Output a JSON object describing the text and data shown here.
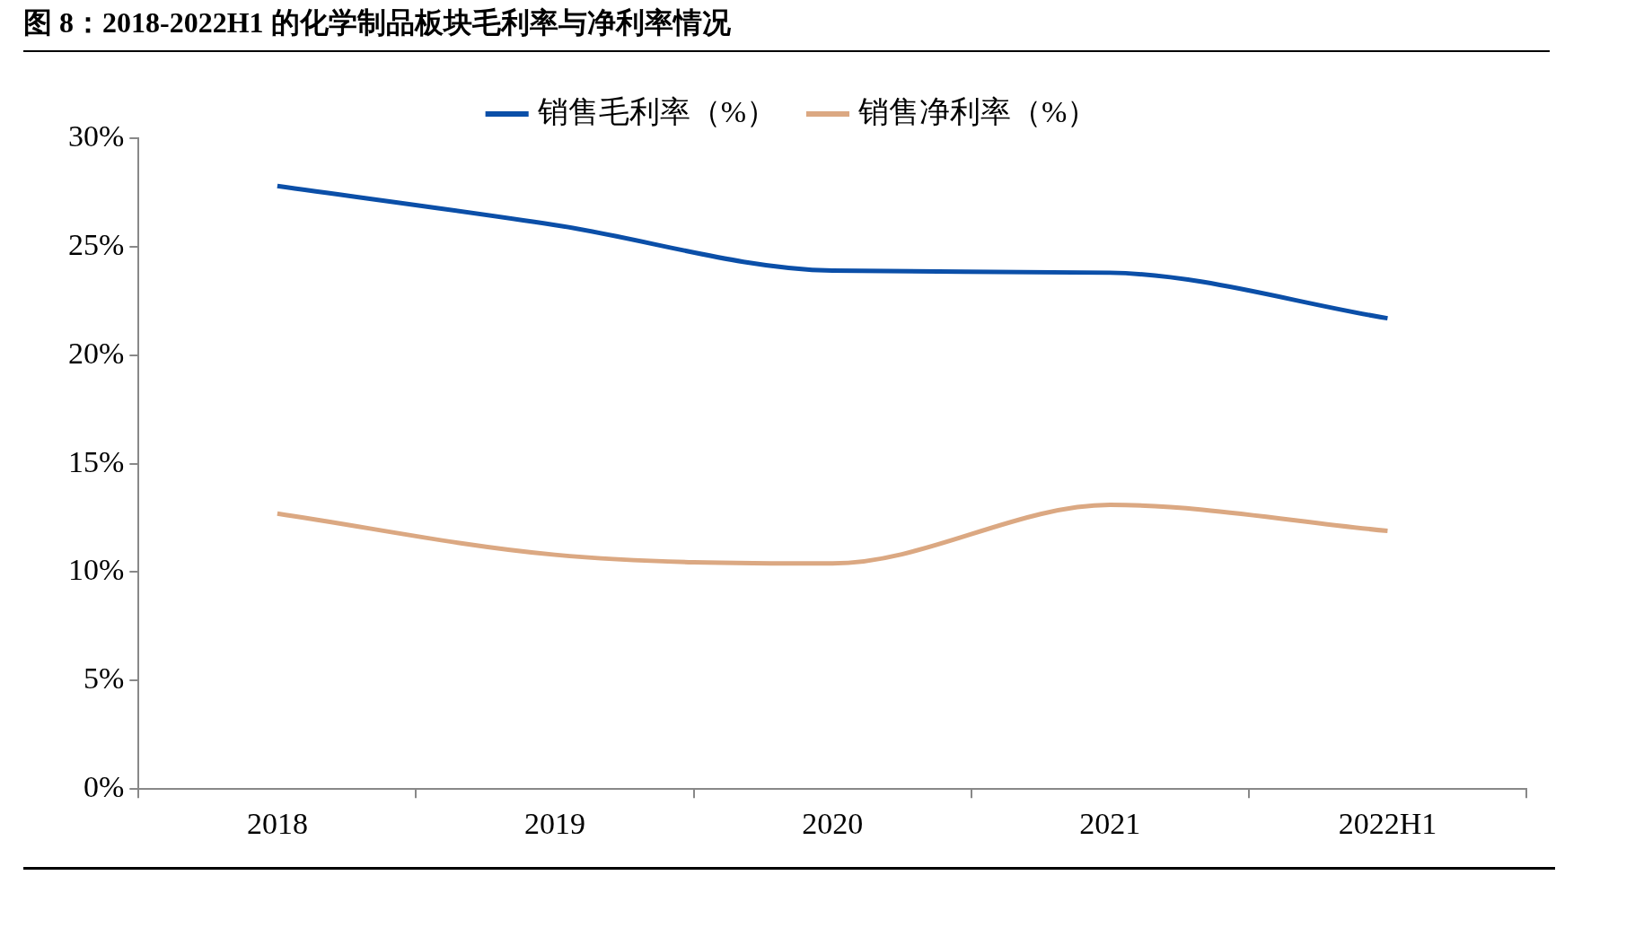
{
  "chart_data": {
    "type": "line",
    "title": "图 8：2018-2022H1 的化学制品板块毛利率与净利率情况",
    "categories": [
      "2018",
      "2019",
      "2020",
      "2021",
      "2022H1"
    ],
    "series": [
      {
        "name": "销售毛利率（%）",
        "color": "#0b4fa8",
        "values": [
          27.8,
          26.0,
          23.9,
          23.8,
          21.7
        ]
      },
      {
        "name": "销售净利率（%）",
        "color": "#dba882",
        "values": [
          12.7,
          10.8,
          10.4,
          13.1,
          11.9
        ]
      }
    ],
    "ylim": [
      0,
      30
    ],
    "yticks": [
      {
        "value": 0,
        "label": "0%"
      },
      {
        "value": 5,
        "label": "5%"
      },
      {
        "value": 10,
        "label": "10%"
      },
      {
        "value": 15,
        "label": "15%"
      },
      {
        "value": 20,
        "label": "20%"
      },
      {
        "value": 25,
        "label": "25%"
      },
      {
        "value": 30,
        "label": "30%"
      }
    ],
    "grid": false,
    "legend": "top",
    "marker": "none",
    "line_style": "solid"
  }
}
